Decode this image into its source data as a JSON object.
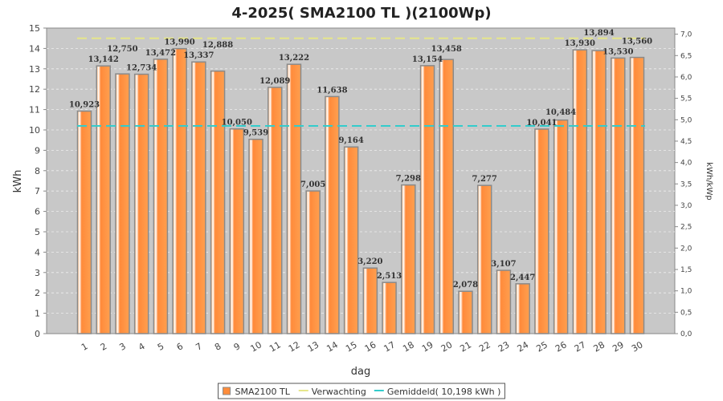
{
  "chart_data": {
    "type": "bar",
    "title": "4-2025( SMA2100 TL )(2100Wp)",
    "xlabel": "dag",
    "ylabel": "kWh",
    "y2label": "kWh/kWp",
    "ylim": [
      0,
      15
    ],
    "y2lim": [
      0,
      7.142857
    ],
    "yticks": [
      "0",
      "1",
      "2",
      "3",
      "4",
      "5",
      "6",
      "7",
      "8",
      "9",
      "10",
      "11",
      "12",
      "13",
      "14",
      "15"
    ],
    "y2ticks": [
      "0,0",
      "0,5",
      "1,0",
      "1,5",
      "2,0",
      "2,5",
      "3,0",
      "3,5",
      "4,0",
      "4,5",
      "5,0",
      "5,5",
      "6,0",
      "6,5",
      "7,0"
    ],
    "categories": [
      "1",
      "2",
      "3",
      "4",
      "5",
      "6",
      "7",
      "8",
      "9",
      "10",
      "11",
      "12",
      "13",
      "14",
      "15",
      "16",
      "17",
      "18",
      "19",
      "20",
      "21",
      "22",
      "23",
      "24",
      "25",
      "26",
      "27",
      "28",
      "29",
      "30"
    ],
    "values": [
      10.923,
      13.142,
      12.75,
      12.734,
      13.472,
      13.99,
      13.337,
      12.888,
      10.05,
      9.539,
      12.089,
      13.222,
      7.005,
      11.638,
      9.164,
      3.22,
      2.513,
      7.298,
      13.154,
      13.458,
      2.078,
      7.277,
      3.107,
      2.447,
      10.041,
      10.484,
      13.93,
      13.894,
      13.53,
      13.56
    ],
    "data_labels": [
      "10,923",
      "13,142",
      "12,750",
      "12,734",
      "13,472",
      "13,990",
      "13,337",
      "12,888",
      "10,050",
      "9,539",
      "12,089",
      "13,222",
      "7,005",
      "11,638",
      "9,164",
      "3,220",
      "2,513",
      "7,298",
      "13,154",
      "13,458",
      "2,078",
      "7,277",
      "3,107",
      "2,447",
      "10,041",
      "10,484",
      "13,930",
      "13,894",
      "13,530",
      "13,560"
    ],
    "expectation": 14.5,
    "average": 10.198,
    "legend": {
      "position": "bottom",
      "items": [
        "SMA2100 TL",
        "Verwachting",
        "Gemiddeld( 10,198 kWh )"
      ]
    },
    "colors": {
      "bar": "#ff8c3a",
      "expectation": "#e6e68a",
      "average": "#33cccc",
      "plot_bg": "#c8c8c8"
    }
  }
}
